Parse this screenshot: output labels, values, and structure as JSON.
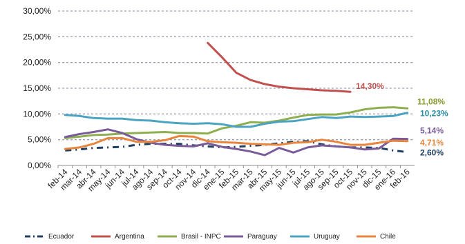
{
  "chart_data": {
    "type": "line",
    "title": "",
    "xlabel": "",
    "ylabel": "",
    "ylim": [
      0,
      30
    ],
    "ytick_values": [
      0,
      5,
      10,
      15,
      20,
      25,
      30
    ],
    "ytick_labels": [
      "0,00%",
      "5,00%",
      "10,00%",
      "15,00%",
      "20,00%",
      "25,00%",
      "30,00%"
    ],
    "grid": "horizontal dashed",
    "legend_position": "bottom",
    "categories": [
      "feb-14",
      "mar-14",
      "abr-14",
      "may-14",
      "jun-14",
      "jul-14",
      "ago-14",
      "sep-14",
      "oct-14",
      "nov-14",
      "dic-14",
      "ene-15",
      "feb-15",
      "mar-15",
      "abr-15",
      "may-15",
      "jun-15",
      "jul-15",
      "ago-15",
      "sep-15",
      "oct-15",
      "nov-15",
      "dic-15",
      "ene-16",
      "feb-16"
    ],
    "series": [
      {
        "name": "Ecuador",
        "color": "#1f3f60",
        "dash": "dashdot",
        "values": [
          2.9,
          3.1,
          3.4,
          3.5,
          3.6,
          4.0,
          4.2,
          4.2,
          4.2,
          3.9,
          3.7,
          3.5,
          3.6,
          3.8,
          4.0,
          4.3,
          4.6,
          4.7,
          4.1,
          3.7,
          3.5,
          3.5,
          3.4,
          2.9,
          2.6
        ]
      },
      {
        "name": "Argentina",
        "color": "#c0504d",
        "dash": "solid",
        "values": [
          null,
          null,
          null,
          null,
          null,
          null,
          null,
          null,
          null,
          null,
          23.8,
          21.0,
          18.0,
          16.6,
          15.8,
          15.3,
          15.0,
          14.8,
          14.6,
          14.5,
          14.3,
          null,
          null,
          null,
          null
        ]
      },
      {
        "name": "Brasil - INPC",
        "color": "#8fae50",
        "dash": "solid",
        "values": [
          5.3,
          5.6,
          5.9,
          6.0,
          6.2,
          6.3,
          6.4,
          6.5,
          6.3,
          6.3,
          6.2,
          7.2,
          7.7,
          8.4,
          8.3,
          8.7,
          9.3,
          9.8,
          9.9,
          9.9,
          10.3,
          10.9,
          11.2,
          11.3,
          11.08
        ]
      },
      {
        "name": "Paraguay",
        "color": "#7a5b9a",
        "dash": "solid",
        "values": [
          5.5,
          6.1,
          6.5,
          7.0,
          6.3,
          5.1,
          4.4,
          4.0,
          3.8,
          3.7,
          4.3,
          3.6,
          3.2,
          2.7,
          2.0,
          3.4,
          2.5,
          3.5,
          3.9,
          3.7,
          3.5,
          3.1,
          3.3,
          5.2,
          5.14
        ]
      },
      {
        "name": "Uruguay",
        "color": "#4ba3c2",
        "dash": "solid",
        "values": [
          9.8,
          9.6,
          9.2,
          9.1,
          9.1,
          8.8,
          8.7,
          8.4,
          8.2,
          8.1,
          8.2,
          8.0,
          7.5,
          7.5,
          8.1,
          8.5,
          8.6,
          9.0,
          9.4,
          9.2,
          9.5,
          9.4,
          9.5,
          9.6,
          10.23
        ]
      },
      {
        "name": "Chile",
        "color": "#e8853d",
        "dash": "solid",
        "values": [
          3.2,
          3.5,
          4.2,
          5.3,
          5.3,
          4.6,
          4.6,
          4.9,
          5.7,
          5.6,
          4.7,
          4.5,
          4.4,
          4.2,
          4.1,
          4.0,
          4.4,
          4.5,
          5.0,
          4.6,
          4.0,
          4.0,
          4.4,
          4.8,
          4.71
        ]
      }
    ],
    "end_labels": [
      {
        "series": "Argentina",
        "text": "14,30%",
        "color": "#c0504d"
      },
      {
        "series": "Brasil - INPC",
        "text": "11,08%",
        "color": "#8a9a2e"
      },
      {
        "series": "Uruguay",
        "text": "10,23%",
        "color": "#2a8fa3"
      },
      {
        "series": "Paraguay",
        "text": "5,14%",
        "color": "#7a5b9a"
      },
      {
        "series": "Chile",
        "text": "4,71%",
        "color": "#e8853d"
      },
      {
        "series": "Ecuador",
        "text": "2,60%",
        "color": "#1f3f60"
      }
    ]
  }
}
